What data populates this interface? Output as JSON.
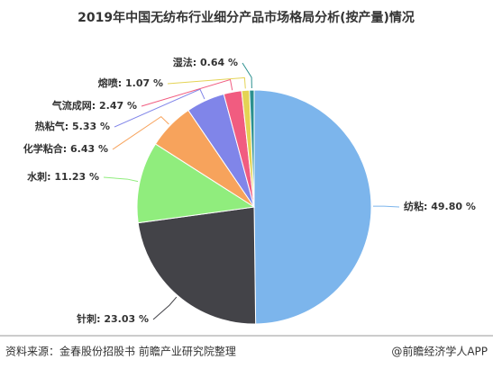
{
  "chart_data": {
    "type": "pie",
    "title": "2019年中国无纺布行业细分产品市场格局分析(按产量)情况",
    "values": [
      49.8,
      23.03,
      11.23,
      6.43,
      5.33,
      2.47,
      1.07,
      0.64
    ],
    "value_labels": [
      "纺粘: 49.80 %",
      "针刺: 23.03 %",
      "水刺: 11.23 %",
      "化学粘合: 6.43 %",
      "热粘气: 5.33 %",
      "气流成网: 2.47 %",
      "熔喷: 1.07 %",
      "湿法: 0.64 %"
    ],
    "colors": [
      "#7cb5ec",
      "#434348",
      "#90ed7d",
      "#f7a35c",
      "#8085e9",
      "#f15c80",
      "#e4d354",
      "#2b908f"
    ],
    "source": "资料来源：金春股份招股书 前瞻产业研究院整理",
    "credit": "@前瞻经济学人APP"
  }
}
